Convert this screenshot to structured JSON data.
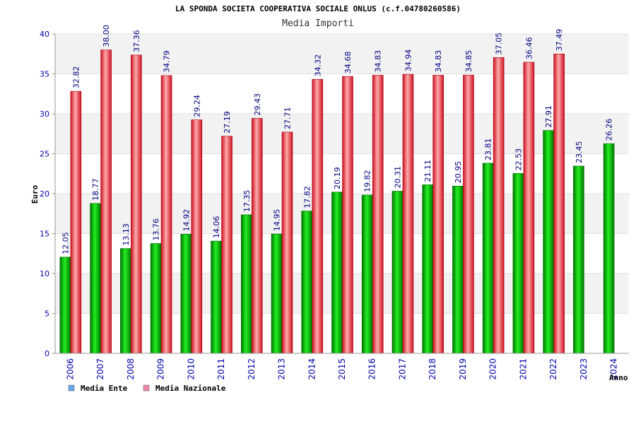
{
  "chart_data": {
    "type": "bar",
    "title": "LA SPONDA SOCIETA COOPERATIVA SOCIALE ONLUS (c.f.04780260586)",
    "subtitle": "Media Importi",
    "xlabel": "Anno",
    "ylabel": "Euro",
    "ylim": [
      0,
      40
    ],
    "yticks": [
      "0",
      "5",
      "10",
      "15",
      "20",
      "25",
      "30",
      "35",
      "40"
    ],
    "categories": [
      "2006",
      "2007",
      "2008",
      "2009",
      "2010",
      "2011",
      "2012",
      "2013",
      "2014",
      "2015",
      "2016",
      "2017",
      "2018",
      "2019",
      "2020",
      "2021",
      "2022",
      "2023",
      "2024"
    ],
    "series": [
      {
        "name": "Media Ente",
        "color": "#00aa00",
        "legend_color": "#66aaee",
        "values": [
          12.05,
          18.77,
          13.13,
          13.76,
          14.92,
          14.06,
          17.35,
          14.95,
          17.82,
          20.19,
          19.82,
          20.31,
          21.11,
          20.95,
          23.81,
          22.53,
          27.91,
          23.45,
          26.26
        ],
        "labels": [
          "12.05",
          "18.77",
          "13.13",
          "13.76",
          "14.92",
          "14.06",
          "17.35",
          "14.95",
          "17.82",
          "20.19",
          "19.82",
          "20.31",
          "21.11",
          "20.95",
          "23.81",
          "22.53",
          "27.91",
          "23.45",
          "26.26"
        ]
      },
      {
        "name": "Media Nazionale",
        "color": "#ee2233",
        "legend_color": "#ee88aa",
        "values": [
          32.82,
          38.0,
          37.36,
          34.79,
          29.24,
          27.19,
          29.43,
          27.71,
          34.32,
          34.68,
          34.83,
          34.94,
          34.83,
          34.85,
          37.05,
          36.46,
          37.49,
          null,
          null
        ],
        "labels": [
          "32.82",
          "38.00",
          "37.36",
          "34.79",
          "29.24",
          "27.19",
          "29.43",
          "27.71",
          "34.32",
          "34.68",
          "34.83",
          "34.94",
          "34.83",
          "34.85",
          "37.05",
          "36.46",
          "37.49",
          null,
          null
        ]
      }
    ],
    "legend": "bottom-left",
    "grid": true
  }
}
